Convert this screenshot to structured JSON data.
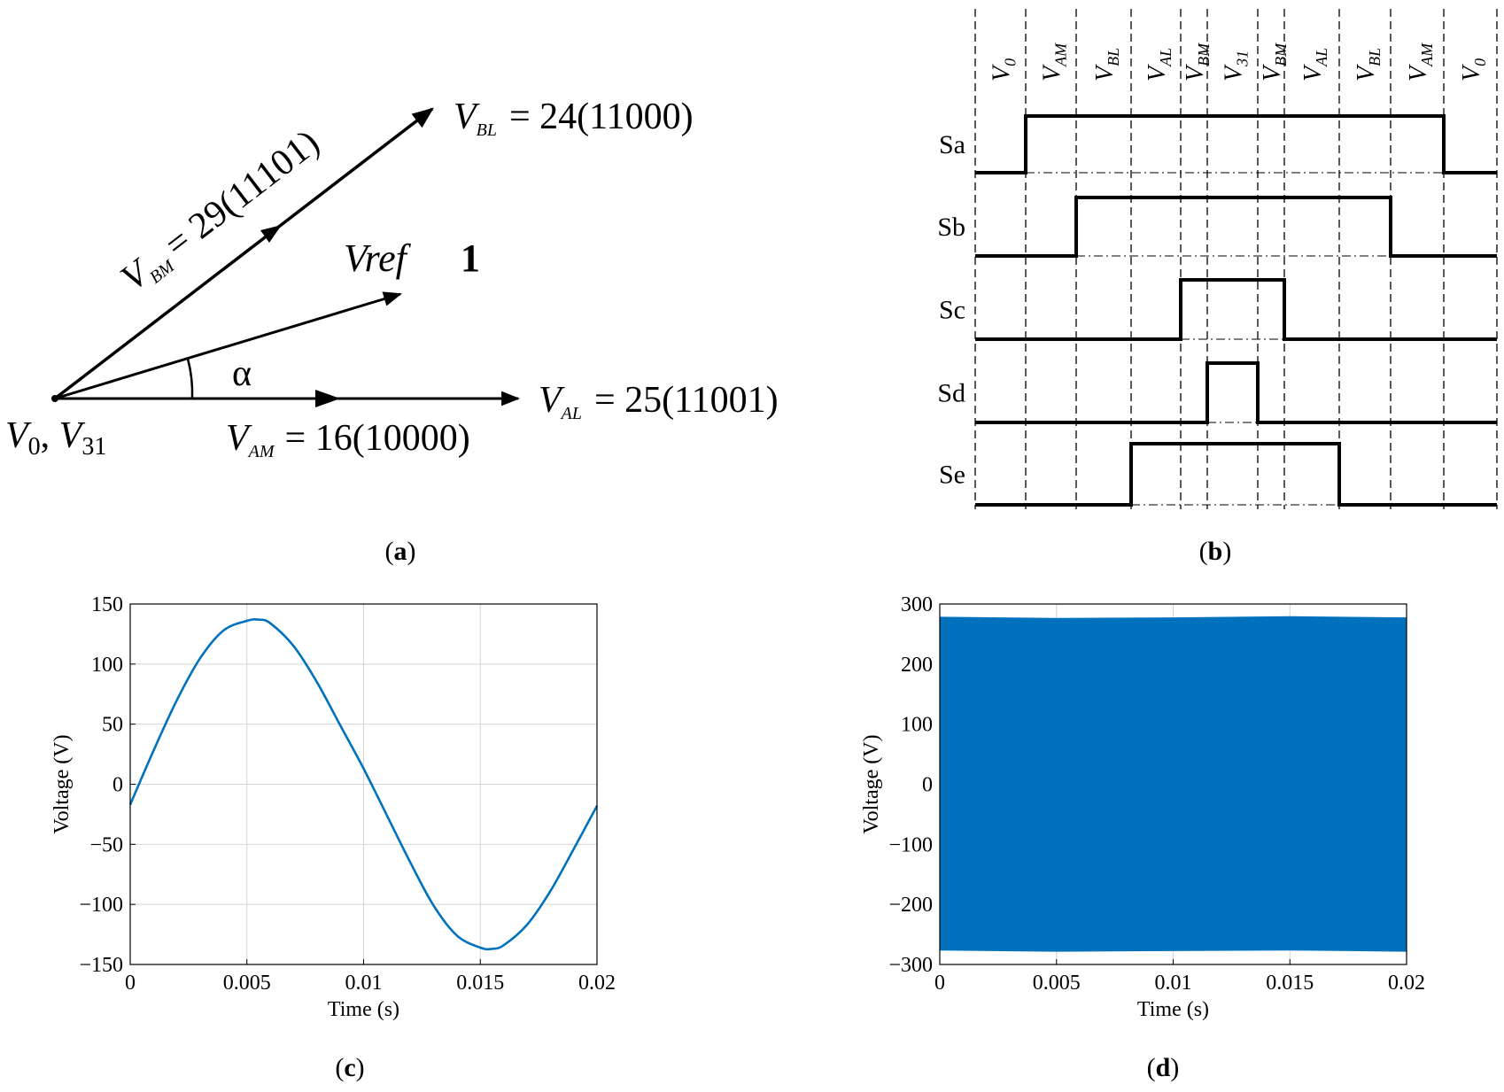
{
  "panel_a": {
    "caption": "a",
    "origin_label": "V",
    "origin_sub": "0",
    "origin_label2": "V",
    "origin_sub2": "31",
    "angle_label": "α",
    "sector_label": "1",
    "ref_label": "Vref",
    "vectors": [
      {
        "name": "V",
        "sub": "BL",
        "value": "= 24(11000)"
      },
      {
        "name": "V",
        "sub": "BM",
        "value": "= 29(11101)"
      },
      {
        "name": "V",
        "sub": "AL",
        "value": "= 25(11001)"
      },
      {
        "name": "V",
        "sub": "AM",
        "value": "= 16(10000)"
      }
    ]
  },
  "panel_b": {
    "caption": "b",
    "segments": [
      {
        "name": "V",
        "sub": "0"
      },
      {
        "name": "V",
        "sub": "AM"
      },
      {
        "name": "V",
        "sub": "BL"
      },
      {
        "name": "V",
        "sub": "AL"
      },
      {
        "name": "V",
        "sub": "BM"
      },
      {
        "name": "V",
        "sub": "31"
      },
      {
        "name": "V",
        "sub": "BM"
      },
      {
        "name": "V",
        "sub": "AL"
      },
      {
        "name": "V",
        "sub": "BL"
      },
      {
        "name": "V",
        "sub": "AM"
      },
      {
        "name": "V",
        "sub": "0"
      }
    ],
    "signals": [
      {
        "label": "Sa",
        "high_from_segment": 1,
        "high_to_segment": 9
      },
      {
        "label": "Sb",
        "high_from_segment": 2,
        "high_to_segment": 8
      },
      {
        "label": "Sc",
        "high_from_segment": 4,
        "high_to_segment": 6
      },
      {
        "label": "Sd",
        "high_from_segment": 5,
        "high_to_segment": 5
      },
      {
        "label": "Se",
        "high_from_segment": 3,
        "high_to_segment": 7
      }
    ]
  },
  "chart_data": [
    {
      "type": "line",
      "caption": "c",
      "xlabel": "Time (s)",
      "ylabel": "Voltage (V)",
      "xlim": [
        0,
        0.02
      ],
      "ylim": [
        -150,
        150
      ],
      "xticks": [
        0,
        0.005,
        0.01,
        0.015,
        0.02
      ],
      "xtick_labels": [
        "0",
        "0.005",
        "0.01",
        "0.015",
        "0.02"
      ],
      "yticks": [
        -150,
        -100,
        -50,
        0,
        50,
        100,
        150
      ],
      "ytick_labels": [
        "−150",
        "−100",
        "−50",
        "0",
        "50",
        "100",
        "150"
      ],
      "grid": true,
      "color": "#0072BD",
      "series": [
        {
          "x": [
            0,
            0.001,
            0.002,
            0.003,
            0.004,
            0.005,
            0.0055,
            0.006,
            0.007,
            0.008,
            0.009,
            0.01,
            0.011,
            0.012,
            0.013,
            0.014,
            0.015,
            0.0155,
            0.016,
            0.017,
            0.018,
            0.019,
            0.02
          ],
          "y": [
            -17,
            28,
            70,
            105,
            128,
            136,
            137,
            134,
            115,
            85,
            49,
            13,
            -26,
            -65,
            -101,
            -126,
            -136,
            -137,
            -134,
            -117,
            -89,
            -54,
            -18
          ]
        }
      ]
    },
    {
      "type": "area",
      "caption": "d",
      "xlabel": "Time (s)",
      "ylabel": "Voltage (V)",
      "xlim": [
        0,
        0.02
      ],
      "ylim": [
        -300,
        300
      ],
      "xticks": [
        0,
        0.005,
        0.01,
        0.015,
        0.02
      ],
      "xtick_labels": [
        "0",
        "0.005",
        "0.01",
        "0.015",
        "0.02"
      ],
      "yticks": [
        -300,
        -200,
        -100,
        0,
        100,
        200,
        300
      ],
      "ytick_labels": [
        "−300",
        "−200",
        "−100",
        "0",
        "100",
        "200",
        "300"
      ],
      "grid": true,
      "color": "#0072BD",
      "series": [
        {
          "x": [
            0,
            0.005,
            0.01,
            0.015,
            0.02
          ],
          "upper": [
            278,
            276,
            277,
            279,
            277
          ],
          "lower": [
            -276,
            -278,
            -277,
            -276,
            -278
          ]
        }
      ]
    }
  ]
}
